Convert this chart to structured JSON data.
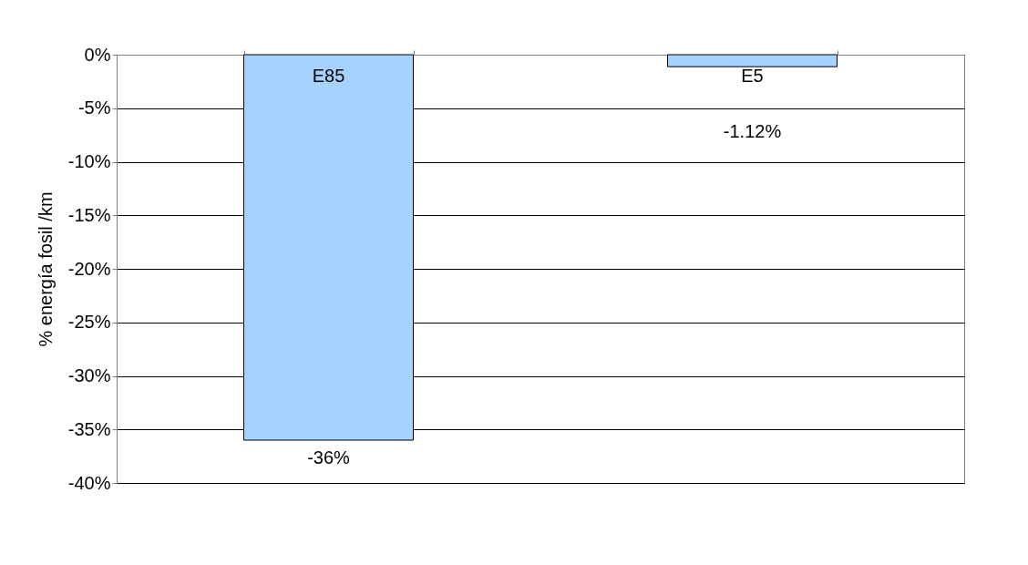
{
  "chart_data": {
    "type": "bar",
    "ylabel": "% energía fosil /km",
    "categories": [
      "E85",
      "E5"
    ],
    "values": [
      -36,
      -1.12
    ],
    "value_labels": [
      "-36%",
      "-1.12%"
    ],
    "color": "#a6d2ff",
    "ylim": [
      -40,
      0
    ],
    "yticks": [
      {
        "value": 0,
        "label": "0%"
      },
      {
        "value": -5,
        "label": "-5%"
      },
      {
        "value": -10,
        "label": "-10%"
      },
      {
        "value": -15,
        "label": "-15%"
      },
      {
        "value": -20,
        "label": "-20%"
      },
      {
        "value": -25,
        "label": "-25%"
      },
      {
        "value": -30,
        "label": "-30%"
      },
      {
        "value": -35,
        "label": "-35%"
      },
      {
        "value": -40,
        "label": "-40%"
      }
    ],
    "grid": "y"
  }
}
